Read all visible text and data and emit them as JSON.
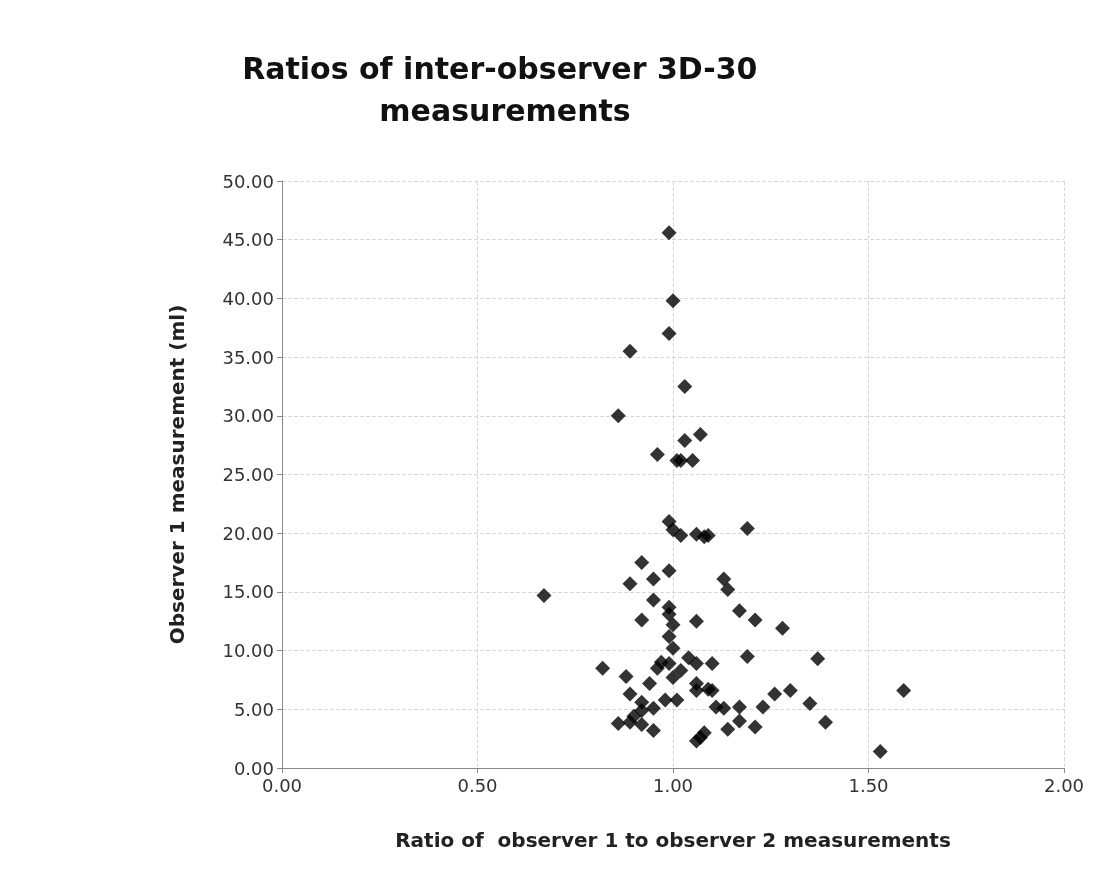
{
  "chart_data": {
    "type": "scatter",
    "title": "Ratios of inter-observer 3D-30 measurements",
    "xlabel": "Ratio of  observer 1 to observer 2 measurements",
    "ylabel": "Observer 1 measurement (ml)",
    "marker": "diamond",
    "grid": true,
    "xlim": [
      0,
      2
    ],
    "ylim": [
      0,
      50
    ],
    "xticks": [
      {
        "value": 0,
        "label": "0.00"
      },
      {
        "value": 0.5,
        "label": "0.50"
      },
      {
        "value": 1,
        "label": "1.00"
      },
      {
        "value": 1.5,
        "label": "1.50"
      },
      {
        "value": 2,
        "label": "2.00"
      }
    ],
    "yticks": [
      {
        "value": 0,
        "label": "0.00"
      },
      {
        "value": 5,
        "label": "5.00"
      },
      {
        "value": 10,
        "label": "10.00"
      },
      {
        "value": 15,
        "label": "15.00"
      },
      {
        "value": 20,
        "label": "20.00"
      },
      {
        "value": 25,
        "label": "25.00"
      },
      {
        "value": 30,
        "label": "30.00"
      },
      {
        "value": 35,
        "label": "35.00"
      },
      {
        "value": 40,
        "label": "40.00"
      },
      {
        "value": 45,
        "label": "45.00"
      },
      {
        "value": 50,
        "label": "50.00"
      }
    ],
    "series": [
      {
        "color": "#000000",
        "x": [
          0.99,
          1.0,
          0.99,
          0.89,
          1.03,
          0.86,
          1.03,
          1.07,
          0.96,
          1.01,
          1.02,
          1.05,
          0.99,
          1.0,
          1.02,
          1.06,
          1.08,
          1.09,
          1.19,
          0.92,
          0.89,
          0.95,
          0.99,
          1.13,
          1.14,
          0.67,
          0.95,
          0.99,
          0.99,
          1.0,
          0.99,
          0.92,
          1.06,
          1.17,
          1.21,
          1.28,
          1.0,
          1.19,
          1.37,
          0.99,
          1.04,
          1.06,
          1.1,
          0.82,
          0.88,
          0.97,
          0.96,
          0.94,
          1.0,
          1.02,
          0.89,
          1.06,
          1.06,
          1.09,
          1.1,
          1.3,
          1.26,
          1.59,
          0.92,
          0.92,
          0.95,
          0.98,
          1.01,
          1.11,
          1.13,
          1.17,
          1.23,
          1.35,
          1.17,
          1.39,
          0.86,
          0.89,
          0.92,
          0.95,
          0.9,
          1.21,
          1.14,
          1.06,
          1.07,
          1.08,
          1.53
        ],
        "values": [
          45.6,
          39.8,
          37.0,
          35.5,
          32.5,
          30.0,
          27.9,
          28.4,
          26.7,
          26.2,
          26.2,
          26.2,
          21.0,
          20.3,
          19.8,
          19.9,
          19.7,
          19.8,
          20.4,
          17.5,
          15.7,
          16.1,
          16.8,
          16.1,
          15.2,
          14.7,
          14.3,
          13.7,
          13.1,
          12.2,
          11.2,
          12.6,
          12.5,
          13.4,
          12.6,
          11.9,
          10.2,
          9.5,
          9.3,
          8.9,
          9.4,
          8.9,
          8.9,
          8.5,
          7.8,
          9.0,
          8.5,
          7.2,
          7.7,
          8.3,
          6.3,
          7.2,
          6.6,
          6.7,
          6.6,
          6.6,
          6.3,
          6.6,
          5.6,
          4.9,
          5.1,
          5.8,
          5.8,
          5.2,
          5.1,
          5.2,
          5.2,
          5.5,
          4.0,
          3.9,
          3.8,
          3.9,
          3.7,
          3.2,
          4.4,
          3.5,
          3.3,
          2.3,
          2.6,
          3.0,
          1.4
        ]
      }
    ]
  }
}
